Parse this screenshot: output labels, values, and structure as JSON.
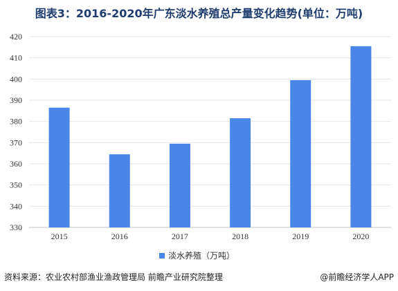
{
  "title": "图表3：2016-2020年广东淡水养殖总产量变化趋势(单位：万吨)",
  "footer": {
    "source": "资料来源：农业农村部渔业渔政管理局 前瞻产业研究院整理",
    "brand": "@前瞻经济学人APP"
  },
  "colors": {
    "bar": "#4a86e8",
    "title": "#1f3c6e",
    "grid": "#e6e6e6"
  },
  "chart_data": {
    "type": "bar",
    "categories": [
      "2015",
      "2016",
      "2017",
      "2018",
      "2019",
      "2020"
    ],
    "series": [
      {
        "name": "淡水养殖（万吨）",
        "values": [
          386.5,
          364.5,
          369.5,
          381.5,
          399.5,
          415.5
        ]
      }
    ],
    "title": "图表3：2016-2020年广东淡水养殖总产量变化趋势(单位：万吨)",
    "ylim": [
      330,
      420
    ],
    "yticks": [
      330,
      340,
      350,
      360,
      370,
      380,
      390,
      400,
      410,
      420
    ],
    "grid": true,
    "legend": "bottom"
  }
}
